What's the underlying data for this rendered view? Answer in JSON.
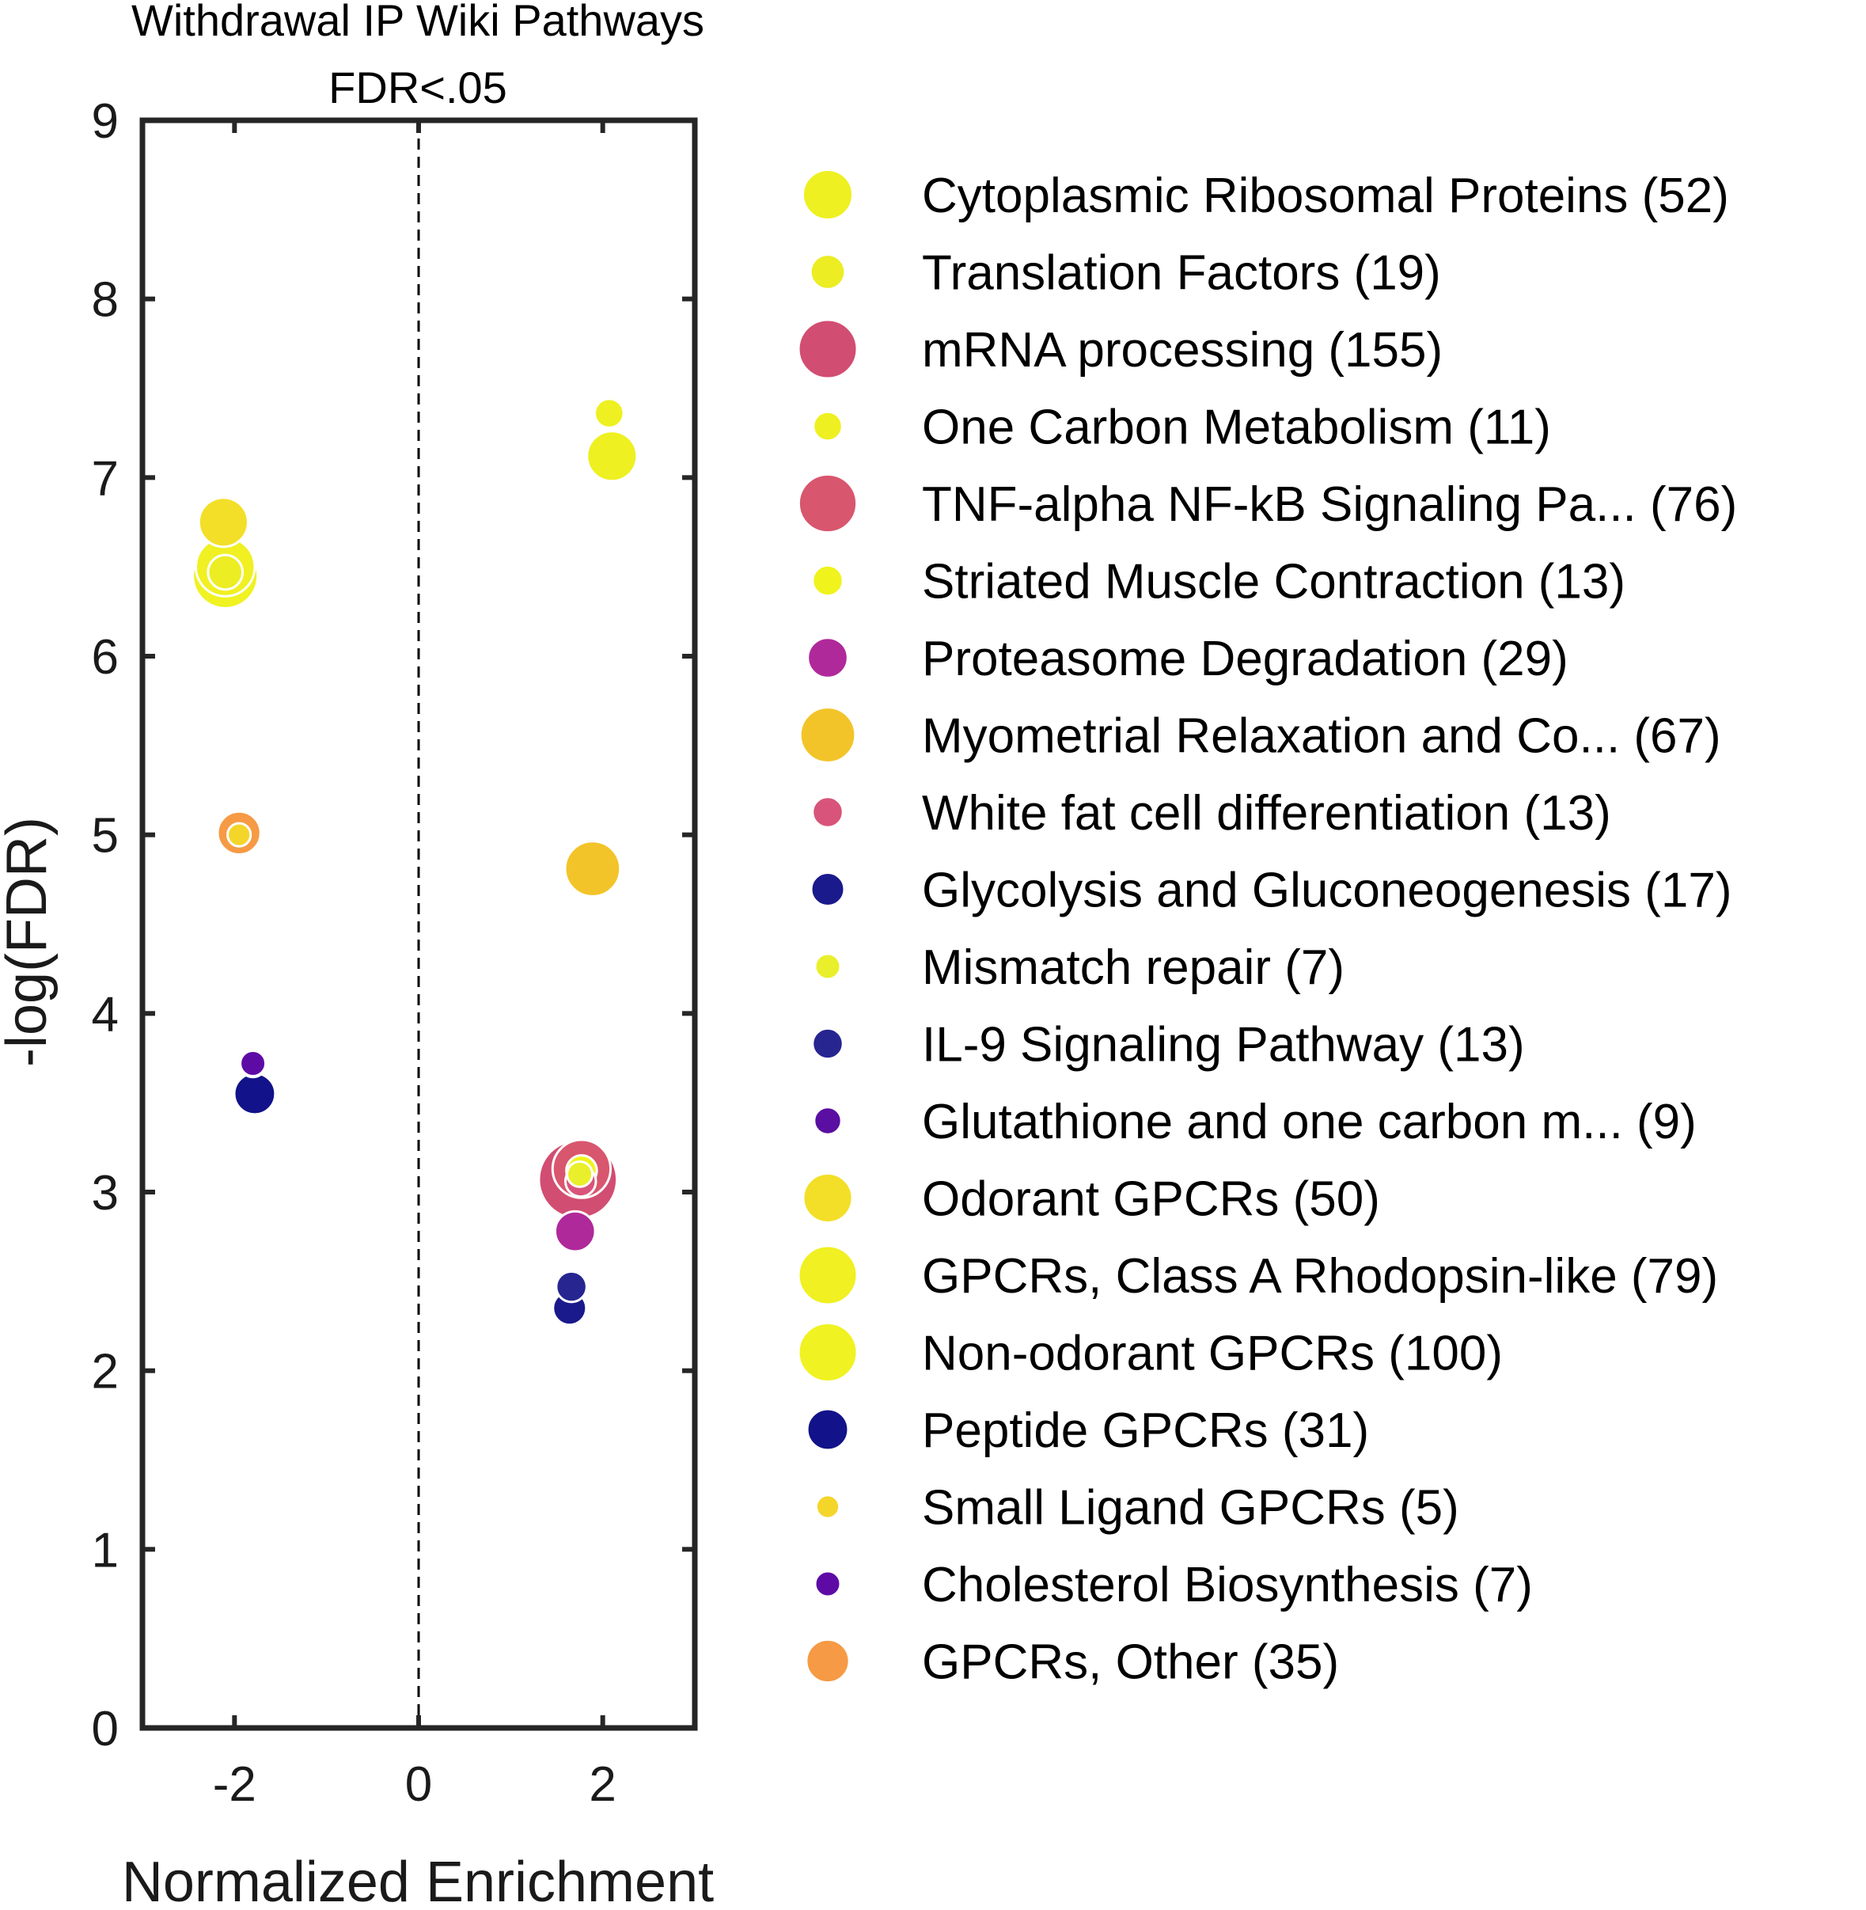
{
  "chart_data": {
    "type": "scatter",
    "title_lines": [
      "Withdrawal IP Wiki Pathways",
      "FDR<.05"
    ],
    "xlabel": "Normalized Enrichment",
    "ylabel": "-log(FDR)",
    "xlim": [
      -3,
      3
    ],
    "ylim": [
      0,
      9
    ],
    "xticks": [
      -2,
      0,
      2
    ],
    "yticks": [
      0,
      1,
      2,
      3,
      4,
      5,
      6,
      7,
      8,
      9
    ],
    "reference_line": {
      "x": 0,
      "style": "dashed"
    },
    "grid": false,
    "legend_position": "right",
    "size_encodes": "gene set size (number in parentheses)",
    "series": [
      {
        "name": "Cytoplasmic Ribosomal Proteins (52)",
        "size": 52,
        "color": "#eef021",
        "x": 2.1,
        "y": 7.12
      },
      {
        "name": "Translation Factors (19)",
        "size": 19,
        "color": "#eced23",
        "x": -2.1,
        "y": 6.47
      },
      {
        "name": "mRNA processing (155)",
        "size": 155,
        "color": "#d24d72",
        "x": 1.73,
        "y": 3.07
      },
      {
        "name": "One Carbon Metabolism (11)",
        "size": 11,
        "color": "#eef021",
        "x": 2.07,
        "y": 7.36
      },
      {
        "name": "TNF-alpha NF-kB Signaling Pa... (76)",
        "size": 76,
        "color": "#d8566e",
        "x": 1.77,
        "y": 3.13
      },
      {
        "name": "Striated Muscle Contraction (13)",
        "size": 13,
        "color": "#f0f31c",
        "x": 1.77,
        "y": 3.12
      },
      {
        "name": "Proteasome Degradation (29)",
        "size": 29,
        "color": "#b0299a",
        "x": 1.7,
        "y": 2.78
      },
      {
        "name": "Myometrial Relaxation and Co... (67)",
        "size": 67,
        "color": "#f3c429",
        "x": 1.89,
        "y": 4.81
      },
      {
        "name": "White fat cell differentiation (13)",
        "size": 13,
        "color": "#d9547a",
        "x": 1.76,
        "y": 3.06
      },
      {
        "name": "Glycolysis and Gluconeogenesis (17)",
        "size": 17,
        "color": "#1a1a8c",
        "x": 1.64,
        "y": 2.35
      },
      {
        "name": "Mismatch repair (7)",
        "size": 7,
        "color": "#eaef2b",
        "x": 1.75,
        "y": 3.1
      },
      {
        "name": "IL-9 Signaling Pathway (13)",
        "size": 13,
        "color": "#272590",
        "x": 1.66,
        "y": 2.47
      },
      {
        "name": "Glutathione and one carbon m... (9)",
        "size": 9,
        "color": "#5a0ea2",
        "x": -1.8,
        "y": 3.72
      },
      {
        "name": "Odorant GPCRs (50)",
        "size": 50,
        "color": "#f3df27",
        "x": -2.12,
        "y": 6.75
      },
      {
        "name": "GPCRs, Class A Rhodopsin-like (79)",
        "size": 79,
        "color": "#f0f022",
        "x": -2.1,
        "y": 6.5
      },
      {
        "name": "Non-odorant GPCRs (100)",
        "size": 100,
        "color": "#f0f222",
        "x": -2.1,
        "y": 6.45
      },
      {
        "name": "Peptide GPCRs (31)",
        "size": 31,
        "color": "#12128a",
        "x": -1.78,
        "y": 3.55
      },
      {
        "name": "Small Ligand GPCRs (5)",
        "size": 5,
        "color": "#f4d52a",
        "x": -1.95,
        "y": 5.0
      },
      {
        "name": "Cholesterol Biosynthesis (7)",
        "size": 7,
        "color": "#5e0ba6",
        "x": -1.8,
        "y": 3.72
      },
      {
        "name": "GPCRs, Other (35)",
        "size": 35,
        "color": "#f69a45",
        "x": -1.95,
        "y": 5.01
      }
    ]
  }
}
